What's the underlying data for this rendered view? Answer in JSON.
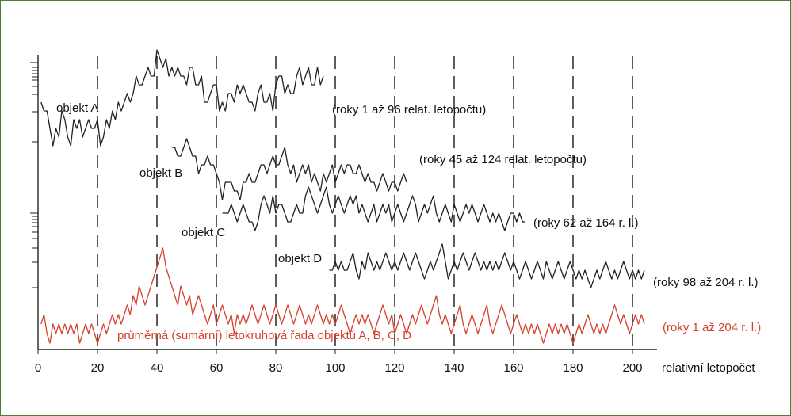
{
  "chart_data": {
    "type": "line",
    "xlabel": "relativní letopočet",
    "xlim": [
      0,
      204
    ],
    "x_ticks": [
      0,
      20,
      40,
      60,
      80,
      100,
      120,
      140,
      160,
      180,
      200
    ],
    "colors": {
      "individual": "#222222",
      "average": "#d5402f"
    },
    "series": [
      {
        "id": "A",
        "name": "objekt A",
        "range_label": "(roky 1 až 96 relat. letopočtu)",
        "x_start": 1,
        "values": [
          7,
          6,
          6,
          4,
          2,
          4,
          3,
          6,
          5,
          3,
          2,
          5,
          4,
          5,
          3,
          4,
          5,
          4,
          4,
          5,
          2,
          3,
          5,
          4,
          6,
          5,
          7,
          6,
          7,
          8,
          7,
          8,
          10,
          9,
          9,
          10,
          11,
          10,
          10,
          13,
          12,
          11,
          12,
          10,
          11,
          10,
          11,
          10,
          10,
          9,
          11,
          11,
          9,
          9,
          10,
          7,
          7,
          8,
          9,
          9,
          6,
          7,
          6,
          8,
          8,
          7,
          9,
          8,
          9,
          8,
          7,
          7,
          6,
          8,
          9,
          7,
          7,
          8,
          6,
          9,
          10,
          10,
          8,
          9,
          8,
          8,
          10,
          11,
          9,
          10,
          11,
          9,
          9,
          11,
          9,
          10
        ]
      },
      {
        "id": "B",
        "name": "objekt B",
        "range_label": "(roky 45 až 124 relat. letopočtu)",
        "x_start": 45,
        "values": [
          7,
          7,
          6,
          6,
          7,
          8,
          7,
          6,
          6,
          4,
          5,
          5,
          6,
          5,
          5,
          4,
          3,
          1,
          3,
          3,
          3,
          2,
          2,
          1,
          3,
          3,
          4,
          3,
          3,
          4,
          5,
          5,
          4,
          5,
          6,
          5,
          5,
          6,
          7,
          5,
          4,
          5,
          3,
          4,
          5,
          4,
          5,
          3,
          4,
          3,
          2,
          4,
          3,
          4,
          5,
          3,
          4,
          5,
          4,
          5,
          5,
          4,
          4,
          5,
          4,
          3,
          4,
          3,
          3,
          2,
          3,
          4,
          3,
          2,
          3,
          3,
          2,
          3,
          4,
          3
        ]
      },
      {
        "id": "C",
        "name": "objekt C",
        "range_label": "(roky 62 až 164 r. l.)",
        "x_start": 62,
        "values": [
          4,
          4,
          4,
          5,
          4,
          3,
          4,
          5,
          4,
          3,
          3,
          2,
          3,
          5,
          6,
          5,
          4,
          6,
          4,
          5,
          5,
          4,
          3,
          3,
          4,
          5,
          4,
          4,
          6,
          7,
          6,
          5,
          4,
          5,
          6,
          7,
          5,
          4,
          5,
          6,
          5,
          4,
          5,
          6,
          5,
          6,
          4,
          5,
          4,
          3,
          4,
          5,
          3,
          4,
          5,
          4,
          5,
          3,
          4,
          5,
          4,
          3,
          4,
          5,
          6,
          5,
          3,
          4,
          5,
          4,
          5,
          6,
          4,
          3,
          4,
          5,
          4,
          3,
          5,
          4,
          3,
          4,
          5,
          4,
          5,
          4,
          3,
          4,
          5,
          4,
          3,
          4,
          3,
          4,
          3,
          2,
          3,
          4,
          4,
          3,
          4,
          3,
          3
        ]
      },
      {
        "id": "D",
        "name": "objekt D",
        "range_label": "(roky 98 až 204 r. l.)",
        "x_start": 98,
        "values": [
          5,
          5,
          6,
          5,
          6,
          5,
          5,
          6,
          7,
          5,
          4,
          6,
          5,
          7,
          6,
          5,
          6,
          5,
          6,
          7,
          6,
          5,
          6,
          5,
          6,
          7,
          6,
          5,
          6,
          7,
          6,
          5,
          4,
          5,
          6,
          5,
          6,
          7,
          8,
          6,
          4,
          5,
          6,
          5,
          6,
          7,
          6,
          5,
          6,
          7,
          6,
          5,
          6,
          5,
          6,
          5,
          6,
          5,
          6,
          7,
          6,
          5,
          6,
          5,
          4,
          5,
          6,
          5,
          4,
          5,
          6,
          5,
          4,
          6,
          5,
          4,
          5,
          6,
          5,
          4,
          5,
          6,
          5,
          4,
          5,
          4,
          5,
          4,
          3,
          4,
          5,
          4,
          5,
          6,
          5,
          4,
          5,
          4,
          5,
          6,
          5,
          4,
          5,
          4,
          5,
          4,
          5
        ]
      },
      {
        "id": "avg",
        "name": "průměrná (sumární) letokruhová řada objektů A, B, C, D",
        "range_label": "(roky 1 až 204 r. l.)",
        "x_start": 1,
        "values": [
          3,
          4,
          2,
          1,
          3,
          2,
          3,
          2,
          3,
          2,
          3,
          2,
          3,
          1,
          2,
          3,
          2,
          3,
          2,
          1,
          2,
          3,
          2,
          3,
          4,
          3,
          4,
          3,
          4,
          5,
          4,
          6,
          5,
          7,
          6,
          5,
          6,
          7,
          8,
          9,
          10,
          11,
          9,
          8,
          7,
          6,
          5,
          7,
          6,
          5,
          6,
          4,
          5,
          6,
          5,
          4,
          3,
          4,
          5,
          3,
          4,
          5,
          4,
          3,
          4,
          2,
          4,
          3,
          4,
          3,
          4,
          5,
          4,
          3,
          4,
          5,
          4,
          3,
          4,
          5,
          4,
          3,
          4,
          5,
          4,
          3,
          4,
          5,
          4,
          3,
          4,
          3,
          4,
          5,
          4,
          3,
          4,
          3,
          4,
          3,
          4,
          5,
          4,
          3,
          2,
          3,
          4,
          3,
          4,
          3,
          4,
          3,
          2,
          3,
          4,
          5,
          4,
          3,
          4,
          2,
          3,
          4,
          3,
          2,
          3,
          4,
          3,
          4,
          5,
          4,
          3,
          4,
          5,
          6,
          4,
          3,
          4,
          3,
          2,
          3,
          4,
          5,
          3,
          2,
          3,
          4,
          3,
          2,
          3,
          4,
          5,
          3,
          2,
          3,
          4,
          5,
          4,
          3,
          2,
          3,
          4,
          3,
          2,
          3,
          2,
          3,
          2,
          3,
          2,
          1,
          2,
          3,
          2,
          3,
          2,
          3,
          2,
          3,
          2,
          1,
          2,
          3,
          2,
          3,
          4,
          3,
          2,
          3,
          2,
          3,
          2,
          3,
          4,
          5,
          4,
          3,
          4,
          3,
          2,
          3,
          4,
          3,
          4,
          3
        ]
      }
    ]
  }
}
